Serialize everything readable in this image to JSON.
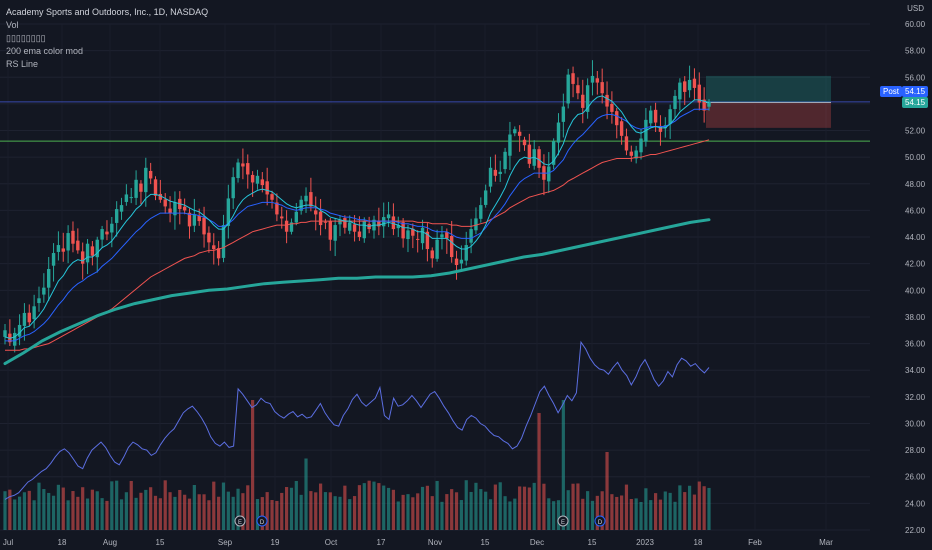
{
  "symbol": {
    "title": "Academy Sports and Outdoors, Inc., 1D, NASDAQ",
    "currency": "USD"
  },
  "indicators": [
    "Vol",
    "▯▯▯▯▯▯▯▯",
    "200 ema color mod",
    "RS Line"
  ],
  "price_tags": {
    "post_label": "Post",
    "post_value": "54.15",
    "last_value": "54.15"
  },
  "colors": {
    "background": "#131722",
    "up": "#26a69a",
    "down": "#ef5350",
    "ema_fast": "#26c6da",
    "ema_mid": "#2962ff",
    "ema_slow": "#ef5350",
    "ema_200": "#26a69a",
    "rs_line": "#5b6ee1",
    "support_line": "#4caf50",
    "post_line": "#3949ab"
  },
  "chart_data": {
    "type": "candlestick",
    "x_ticks": [
      "Jul",
      "18",
      "Aug",
      "15",
      "Sep",
      "19",
      "Oct",
      "17",
      "Nov",
      "15",
      "Dec",
      "15",
      "2023",
      "18",
      "Feb",
      "Mar"
    ],
    "y_ticks": [
      "60.00",
      "58.00",
      "56.00",
      "54.00",
      "52.00",
      "50.00",
      "48.00",
      "46.00",
      "44.00",
      "42.00",
      "40.00",
      "38.00",
      "36.00",
      "34.00",
      "32.00",
      "30.00",
      "28.00",
      "26.00",
      "24.00",
      "22.00"
    ],
    "ylim": [
      22,
      60
    ],
    "support_level": 51.2,
    "post_price": 54.15,
    "position": {
      "entry": 54.1,
      "target": 56.1,
      "stop": 52.2
    },
    "earnings_markers": [
      "E",
      "D",
      "E",
      "D"
    ],
    "closes": [
      37.0,
      36.1,
      36.8,
      37.4,
      38.3,
      37.6,
      38.8,
      39.4,
      40.2,
      41.6,
      42.8,
      43.4,
      42.9,
      44.3,
      43.5,
      43.0,
      42.0,
      43.5,
      42.6,
      43.8,
      44.6,
      44.2,
      45.0,
      46.1,
      46.4,
      47.2,
      47.0,
      48.3,
      47.4,
      49.2,
      48.4,
      47.1,
      46.8,
      46.3,
      45.8,
      46.6,
      46.1,
      46.0,
      44.8,
      45.7,
      45.2,
      44.2,
      43.6,
      43.1,
      42.4,
      44.9,
      46.9,
      48.5,
      49.6,
      49.3,
      48.7,
      48.1,
      48.6,
      47.9,
      47.2,
      46.8,
      45.7,
      45.4,
      44.4,
      45.1,
      45.9,
      46.8,
      47.1,
      46.3,
      45.7,
      44.9,
      45.1,
      43.8,
      44.9,
      45.3,
      44.7,
      45.1,
      44.4,
      44.0,
      45.2,
      44.6,
      45.3,
      44.8,
      45.5,
      45.7,
      44.6,
      44.9,
      43.9,
      44.5,
      44.1,
      43.8,
      44.7,
      43.1,
      42.4,
      43.8,
      44.2,
      43.9,
      42.5,
      41.9,
      42.3,
      43.4,
      44.6,
      45.4,
      46.4,
      47.5,
      49.2,
      48.6,
      48.9,
      50.4,
      51.7,
      52.1,
      51.6,
      50.9,
      49.5,
      50.6,
      49.2,
      48.3,
      49.3,
      51.2,
      52.6,
      53.8,
      56.2,
      55.5,
      54.8,
      53.7,
      55.4,
      56.1,
      55.6,
      54.8,
      53.8,
      53.4,
      52.4,
      51.6,
      50.5,
      50.1,
      50.5,
      51.4,
      52.8,
      53.5,
      52.6,
      51.9,
      52.4,
      53.6,
      54.6,
      55.6,
      54.9,
      55.8,
      55.2,
      54.1,
      53.5,
      54.15
    ],
    "ema_fast": [
      36.5,
      36.4,
      36.5,
      36.8,
      37.2,
      37.3,
      37.7,
      38.1,
      38.6,
      39.3,
      40.0,
      40.7,
      41.1,
      41.7,
      42.1,
      42.3,
      42.2,
      42.5,
      42.5,
      42.8,
      43.2,
      43.4,
      43.7,
      44.2,
      44.7,
      45.2,
      45.6,
      46.1,
      46.4,
      46.9,
      47.2,
      47.2,
      47.1,
      46.9,
      46.7,
      46.6,
      46.5,
      46.4,
      46.2,
      46.0,
      45.9,
      45.6,
      45.3,
      44.9,
      44.6,
      44.6,
      45.0,
      45.6,
      46.3,
      46.8,
      47.1,
      47.3,
      47.5,
      47.6,
      47.5,
      47.4,
      47.1,
      46.8,
      46.5,
      46.3,
      46.2,
      46.3,
      46.4,
      46.4,
      46.3,
      46.0,
      45.8,
      45.5,
      45.4,
      45.3,
      45.2,
      45.2,
      45.0,
      44.9,
      44.9,
      44.8,
      44.9,
      44.9,
      45.0,
      45.1,
      45.0,
      44.9,
      44.7,
      44.7,
      44.6,
      44.4,
      44.4,
      44.2,
      43.9,
      43.9,
      43.9,
      43.9,
      43.6,
      43.3,
      43.1,
      43.1,
      43.3,
      43.7,
      44.2,
      44.9,
      45.8,
      46.4,
      47.0,
      47.7,
      48.6,
      49.3,
      49.8,
      50.0,
      49.9,
      50.0,
      49.8,
      49.5,
      49.4,
      49.7,
      50.3,
      51.0,
      52.1,
      52.8,
      53.2,
      53.3,
      53.7,
      54.2,
      54.5,
      54.6,
      54.4,
      54.2,
      53.8,
      53.4,
      52.8,
      52.3,
      51.9,
      51.8,
      52.0,
      52.2,
      52.3,
      52.2,
      52.2,
      52.5,
      52.9,
      53.4,
      53.7,
      54.0,
      54.3,
      54.3,
      54.2,
      54.1
    ],
    "ema_mid": [
      36.2,
      36.2,
      36.2,
      36.4,
      36.6,
      36.7,
      36.9,
      37.2,
      37.5,
      37.9,
      38.4,
      38.9,
      39.3,
      39.8,
      40.2,
      40.5,
      40.7,
      41.0,
      41.2,
      41.4,
      41.8,
      42.1,
      42.4,
      42.8,
      43.2,
      43.6,
      44.0,
      44.4,
      44.7,
      45.1,
      45.4,
      45.6,
      45.8,
      45.8,
      45.8,
      45.8,
      45.8,
      45.8,
      45.7,
      45.7,
      45.6,
      45.5,
      45.3,
      45.1,
      44.8,
      44.8,
      45.0,
      45.3,
      45.7,
      46.0,
      46.3,
      46.4,
      46.5,
      46.6,
      46.6,
      46.6,
      46.5,
      46.4,
      46.2,
      46.1,
      46.0,
      46.1,
      46.2,
      46.2,
      46.2,
      46.1,
      46.0,
      45.8,
      45.7,
      45.6,
      45.5,
      45.5,
      45.4,
      45.3,
      45.3,
      45.2,
      45.2,
      45.2,
      45.2,
      45.2,
      45.2,
      45.1,
      45.0,
      45.0,
      44.9,
      44.8,
      44.8,
      44.7,
      44.5,
      44.4,
      44.4,
      44.4,
      44.2,
      44.0,
      43.9,
      43.9,
      43.9,
      44.1,
      44.3,
      44.7,
      45.2,
      45.6,
      46.0,
      46.5,
      47.1,
      47.6,
      48.1,
      48.4,
      48.6,
      48.8,
      48.8,
      48.8,
      48.8,
      49.0,
      49.4,
      49.8,
      50.5,
      51.0,
      51.4,
      51.7,
      52.1,
      52.5,
      52.9,
      53.1,
      53.2,
      53.2,
      53.1,
      52.9,
      52.7,
      52.4,
      52.2,
      52.1,
      52.2,
      52.3,
      52.3,
      52.3,
      52.3,
      52.5,
      52.7,
      53.0,
      53.2,
      53.4,
      53.6,
      53.6,
      53.6,
      53.6
    ],
    "ema_slow": [
      35.5,
      35.5,
      35.5,
      35.5,
      35.6,
      35.6,
      35.7,
      35.8,
      35.9,
      36.0,
      36.2,
      36.4,
      36.6,
      36.8,
      37.0,
      37.2,
      37.4,
      37.6,
      37.8,
      38.0,
      38.2,
      38.4,
      38.6,
      38.9,
      39.2,
      39.5,
      39.8,
      40.1,
      40.4,
      40.7,
      41.0,
      41.2,
      41.4,
      41.6,
      41.8,
      42.0,
      42.2,
      42.4,
      42.5,
      42.6,
      42.8,
      42.9,
      43.0,
      43.0,
      43.1,
      43.2,
      43.4,
      43.6,
      43.8,
      44.0,
      44.2,
      44.4,
      44.5,
      44.6,
      44.7,
      44.8,
      44.9,
      44.9,
      44.9,
      45.0,
      45.0,
      45.1,
      45.1,
      45.2,
      45.2,
      45.2,
      45.2,
      45.2,
      45.2,
      45.2,
      45.2,
      45.2,
      45.2,
      45.2,
      45.2,
      45.2,
      45.2,
      45.2,
      45.2,
      45.2,
      45.2,
      45.2,
      45.2,
      45.2,
      45.2,
      45.1,
      45.1,
      45.1,
      45.0,
      45.0,
      45.0,
      45.0,
      44.9,
      44.9,
      44.8,
      44.8,
      44.8,
      44.9,
      45.0,
      45.1,
      45.3,
      45.5,
      45.7,
      45.9,
      46.2,
      46.4,
      46.6,
      46.8,
      47.0,
      47.1,
      47.2,
      47.3,
      47.4,
      47.5,
      47.7,
      47.9,
      48.2,
      48.4,
      48.6,
      48.8,
      49.0,
      49.2,
      49.4,
      49.6,
      49.7,
      49.8,
      49.9,
      49.9,
      49.9,
      49.9,
      50.0,
      50.0,
      50.1,
      50.2,
      50.2,
      50.3,
      50.4,
      50.5,
      50.6,
      50.7,
      50.8,
      50.9,
      51.0,
      51.1,
      51.2,
      51.3
    ],
    "ema_200": [
      34.5,
      35.3,
      36.2,
      36.9,
      37.5,
      38.1,
      38.6,
      39.0,
      39.3,
      39.6,
      39.8,
      40.0,
      40.1,
      40.3,
      40.5,
      40.6,
      40.7,
      40.8,
      40.9,
      40.9,
      41.0,
      41.0,
      41.0,
      41.1,
      41.3,
      41.6,
      41.9,
      42.2,
      42.5,
      42.7,
      43.0,
      43.3,
      43.6,
      43.9,
      44.2,
      44.5,
      44.8,
      45.1,
      45.3
    ],
    "rs_line": [
      24.3,
      24.5,
      24.6,
      24.8,
      25.2,
      25.6,
      25.8,
      26.1,
      26.4,
      26.6,
      27.0,
      27.5,
      27.9,
      28.1,
      27.8,
      27.3,
      26.8,
      26.6,
      27.4,
      28.0,
      28.3,
      28.6,
      28.2,
      27.6,
      27.1,
      26.9,
      27.5,
      28.2,
      28.6,
      28.4,
      28.1,
      28.0,
      27.6,
      27.8,
      28.4,
      28.9,
      29.3,
      29.6,
      30.2,
      30.8,
      31.1,
      31.3,
      30.9,
      30.4,
      29.8,
      29.0,
      28.5,
      28.3,
      28.6,
      28.2,
      28.3,
      32.6,
      32.2,
      31.7,
      31.2,
      31.4,
      31.9,
      31.6,
      31.5,
      30.9,
      30.6,
      30.4,
      30.7,
      30.9,
      30.5,
      30.7,
      30.4,
      30.5,
      31.0,
      31.5,
      30.8,
      30.3,
      29.9,
      29.8,
      30.6,
      31.1,
      31.8,
      32.2,
      31.6,
      31.3,
      31.6,
      31.9,
      32.7,
      30.6,
      30.3,
      31.9,
      31.3,
      31.4,
      31.7,
      32.1,
      31.7,
      31.2,
      31.7,
      32.2,
      32.4,
      31.9,
      31.3,
      30.8,
      30.2,
      29.7,
      29.5,
      30.3,
      30.6,
      30.4,
      30.0,
      29.8,
      29.4,
      29.1,
      29.0,
      28.7,
      28.5,
      28.1,
      28.3,
      28.9,
      29.8,
      30.6,
      31.5,
      32.4,
      32.8,
      32.1,
      31.5,
      30.8,
      31.4,
      32.1,
      31.7,
      32.3,
      36.1,
      35.6,
      34.9,
      34.4,
      34.1,
      34.0,
      33.7,
      34.2,
      34.6,
      34.0,
      33.6,
      32.9,
      33.5,
      34.3,
      34.8,
      34.1,
      33.3,
      32.8,
      33.2,
      33.9,
      33.5,
      34.4,
      34.9,
      34.7,
      34.3,
      34.5,
      34.1,
      33.8,
      34.2
    ]
  }
}
